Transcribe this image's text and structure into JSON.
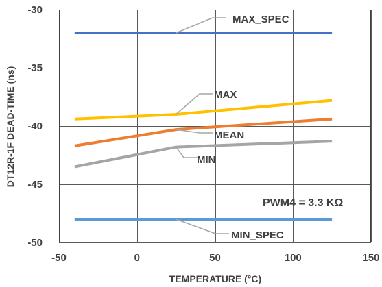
{
  "chart_data": {
    "type": "line",
    "xlabel": "TEMPERATURE (°C)",
    "ylabel": "DT12R-1F DEAD-TIME (ns)",
    "xlim": [
      -50,
      150
    ],
    "ylim": [
      -50,
      -30
    ],
    "xticks": [
      -50,
      0,
      50,
      100,
      150
    ],
    "yticks": [
      -30,
      -35,
      -40,
      -45,
      -50
    ],
    "grid": true,
    "note": "PWM4 = 3.3 KΩ",
    "x": [
      -40,
      25,
      125
    ],
    "series": [
      {
        "name": "MAX_SPEC",
        "color": "#4472C4",
        "values": [
          -32,
          -32,
          -32
        ]
      },
      {
        "name": "MAX",
        "color": "#FFC000",
        "values": [
          -39.4,
          -39.0,
          -37.8
        ]
      },
      {
        "name": "MEAN",
        "color": "#ED7D31",
        "values": [
          -41.7,
          -40.3,
          -39.4
        ]
      },
      {
        "name": "MIN",
        "color": "#A5A5A5",
        "values": [
          -43.5,
          -41.8,
          -41.3
        ]
      },
      {
        "name": "MIN_SPEC",
        "color": "#5B9BD5",
        "values": [
          -48,
          -48,
          -48
        ]
      }
    ]
  }
}
